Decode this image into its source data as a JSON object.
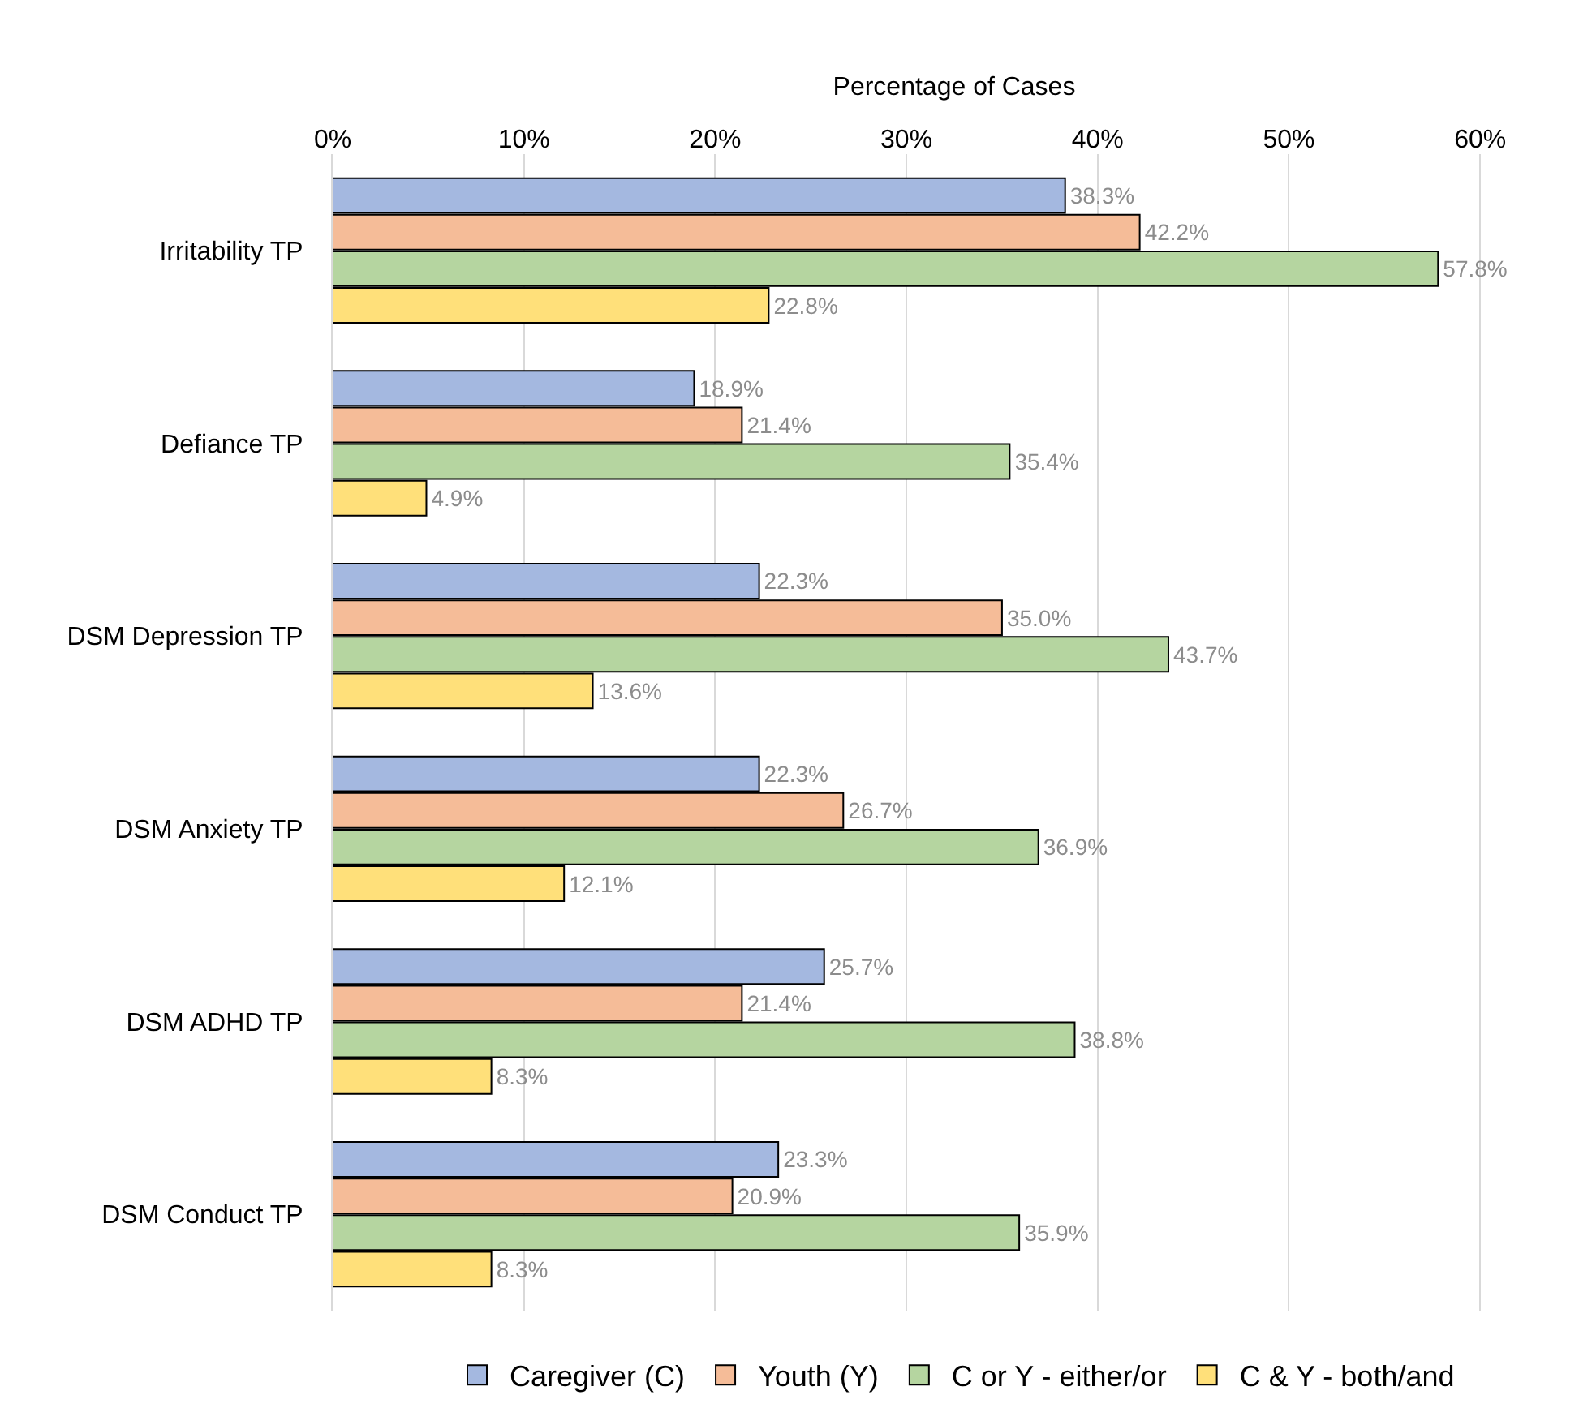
{
  "chart_data": {
    "type": "bar",
    "orientation": "horizontal",
    "xlabel": "Percentage of Cases",
    "categories": [
      "Irritability TP",
      "Defiance TP",
      "DSM Depression TP",
      "DSM Anxiety TP",
      "DSM ADHD TP",
      "DSM Conduct TP"
    ],
    "series": [
      {
        "name": "Caregiver (C)",
        "color": "#a4b8e0",
        "values": [
          38.3,
          18.9,
          22.3,
          22.3,
          25.7,
          23.3
        ],
        "value_labels": [
          "38.3%",
          "18.9%",
          "22.3%",
          "22.3%",
          "25.7%",
          "23.3%"
        ]
      },
      {
        "name": "Youth (Y)",
        "color": "#f5bc98",
        "values": [
          42.2,
          21.4,
          35.0,
          26.7,
          21.4,
          20.9
        ],
        "value_labels": [
          "42.2%",
          "21.4%",
          "35.0%",
          "26.7%",
          "21.4%",
          "20.9%"
        ]
      },
      {
        "name": "C or Y - either/or",
        "color": "#b5d5a0",
        "values": [
          57.8,
          35.4,
          43.7,
          36.9,
          38.8,
          35.9
        ],
        "value_labels": [
          "57.8%",
          "35.4%",
          "43.7%",
          "36.9%",
          "38.8%",
          "35.9%"
        ]
      },
      {
        "name": "C & Y - both/and",
        "color": "#ffe07a",
        "values": [
          22.8,
          4.9,
          13.6,
          12.1,
          8.3,
          8.3
        ],
        "value_labels": [
          "22.8%",
          "4.9%",
          "13.6%",
          "12.1%",
          "8.3%",
          "8.3%"
        ]
      }
    ],
    "xlim": [
      0,
      65
    ],
    "xticks": [
      {
        "value": 0,
        "label": "0%"
      },
      {
        "value": 10,
        "label": "10%"
      },
      {
        "value": 20,
        "label": "20%"
      },
      {
        "value": 30,
        "label": "30%"
      },
      {
        "value": 40,
        "label": "40%"
      },
      {
        "value": 50,
        "label": "50%"
      },
      {
        "value": 60,
        "label": "60%"
      }
    ],
    "grid": "x",
    "legend": "bottom"
  }
}
